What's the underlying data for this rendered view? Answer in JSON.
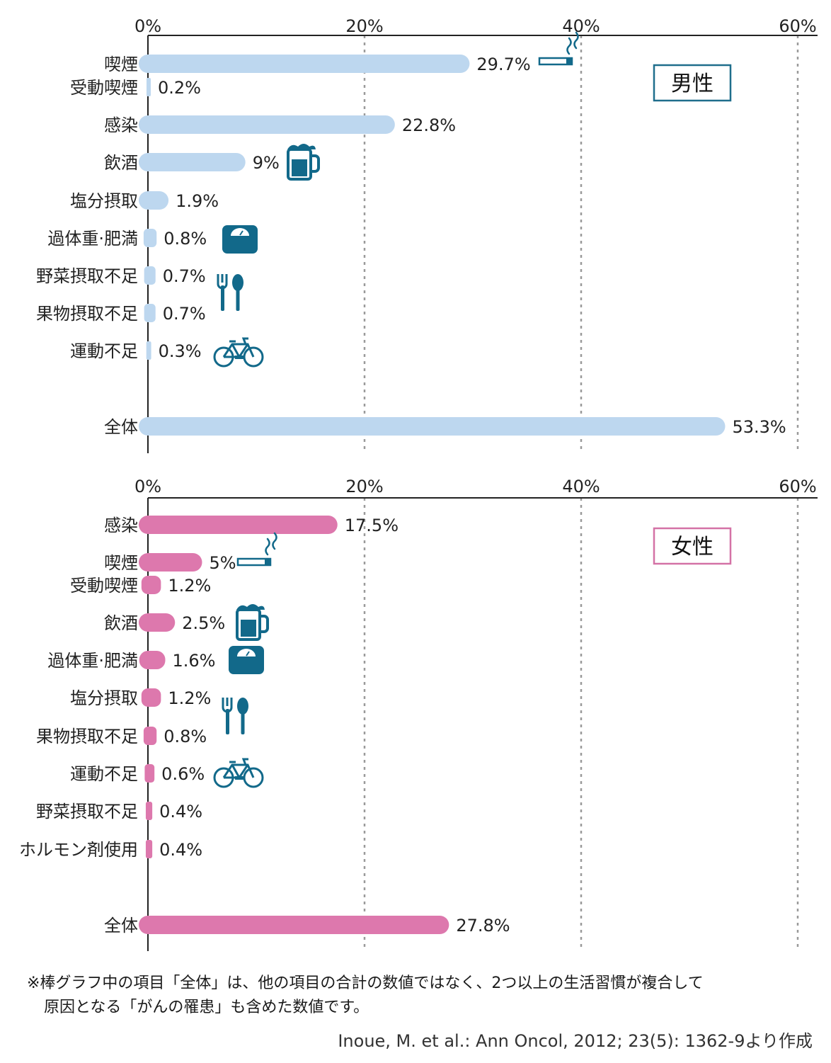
{
  "colors": {
    "male_bar": "#bdd7ef",
    "female_bar": "#dd78ad",
    "icon": "#12698a",
    "male_badge_border": "#1f6e8c",
    "female_badge_border": "#d472a6",
    "grid": "#9a9a9a",
    "axis": "#222222"
  },
  "chart_data": [
    {
      "type": "bar",
      "orientation": "horizontal",
      "title": "男性",
      "xlim": [
        0,
        60
      ],
      "xticks": [
        "0%",
        "20%",
        "40%",
        "60%"
      ],
      "grid": "vertical dashed at 20%, 40%, 60%",
      "categories": [
        "喫煙",
        "受動喫煙",
        "感染",
        "飲酒",
        "塩分摂取",
        "過体重·肥満",
        "野菜摂取不足",
        "果物摂取不足",
        "運動不足",
        "全体"
      ],
      "values": [
        29.7,
        0.2,
        22.8,
        9,
        1.9,
        0.8,
        0.7,
        0.7,
        0.3,
        53.3
      ],
      "labels": [
        "29.7%",
        "0.2%",
        "22.8%",
        "9%",
        "1.9%",
        "0.8%",
        "0.7%",
        "0.7%",
        "0.3%",
        "53.3%"
      ],
      "icons": [
        "cigarette-icon",
        "",
        "",
        "beer-mug-icon",
        "",
        "weighing-scale-icon",
        "fork-spoon-icon",
        "",
        "bicycle-icon",
        ""
      ]
    },
    {
      "type": "bar",
      "orientation": "horizontal",
      "title": "女性",
      "xlim": [
        0,
        60
      ],
      "xticks": [
        "0%",
        "20%",
        "40%",
        "60%"
      ],
      "grid": "vertical dashed at 20%, 40%, 60%",
      "categories": [
        "感染",
        "喫煙",
        "受動喫煙",
        "飲酒",
        "過体重·肥満",
        "塩分摂取",
        "果物摂取不足",
        "運動不足",
        "野菜摂取不足",
        "ホルモン剤使用",
        "全体"
      ],
      "values": [
        17.5,
        5,
        1.2,
        2.5,
        1.6,
        1.2,
        0.8,
        0.6,
        0.4,
        0.4,
        27.8
      ],
      "labels": [
        "17.5%",
        "5%",
        "1.2%",
        "2.5%",
        "1.6%",
        "1.2%",
        "0.8%",
        "0.6%",
        "0.4%",
        "0.4%",
        "27.8%"
      ],
      "icons": [
        "",
        "cigarette-icon",
        "",
        "beer-mug-icon",
        "weighing-scale-icon",
        "fork-spoon-icon",
        "",
        "bicycle-icon",
        "",
        "",
        ""
      ]
    }
  ],
  "footnote": {
    "line1": "※棒グラフ中の項目「全体」は、他の項目の合計の数値ではなく、2つ以上の生活習慣が複合して",
    "line2": "原因となる「がんの罹患」も含めた数値です。"
  },
  "source": "Inoue, M. et al.: Ann Oncol, 2012; 23(5): 1362-9より作成"
}
